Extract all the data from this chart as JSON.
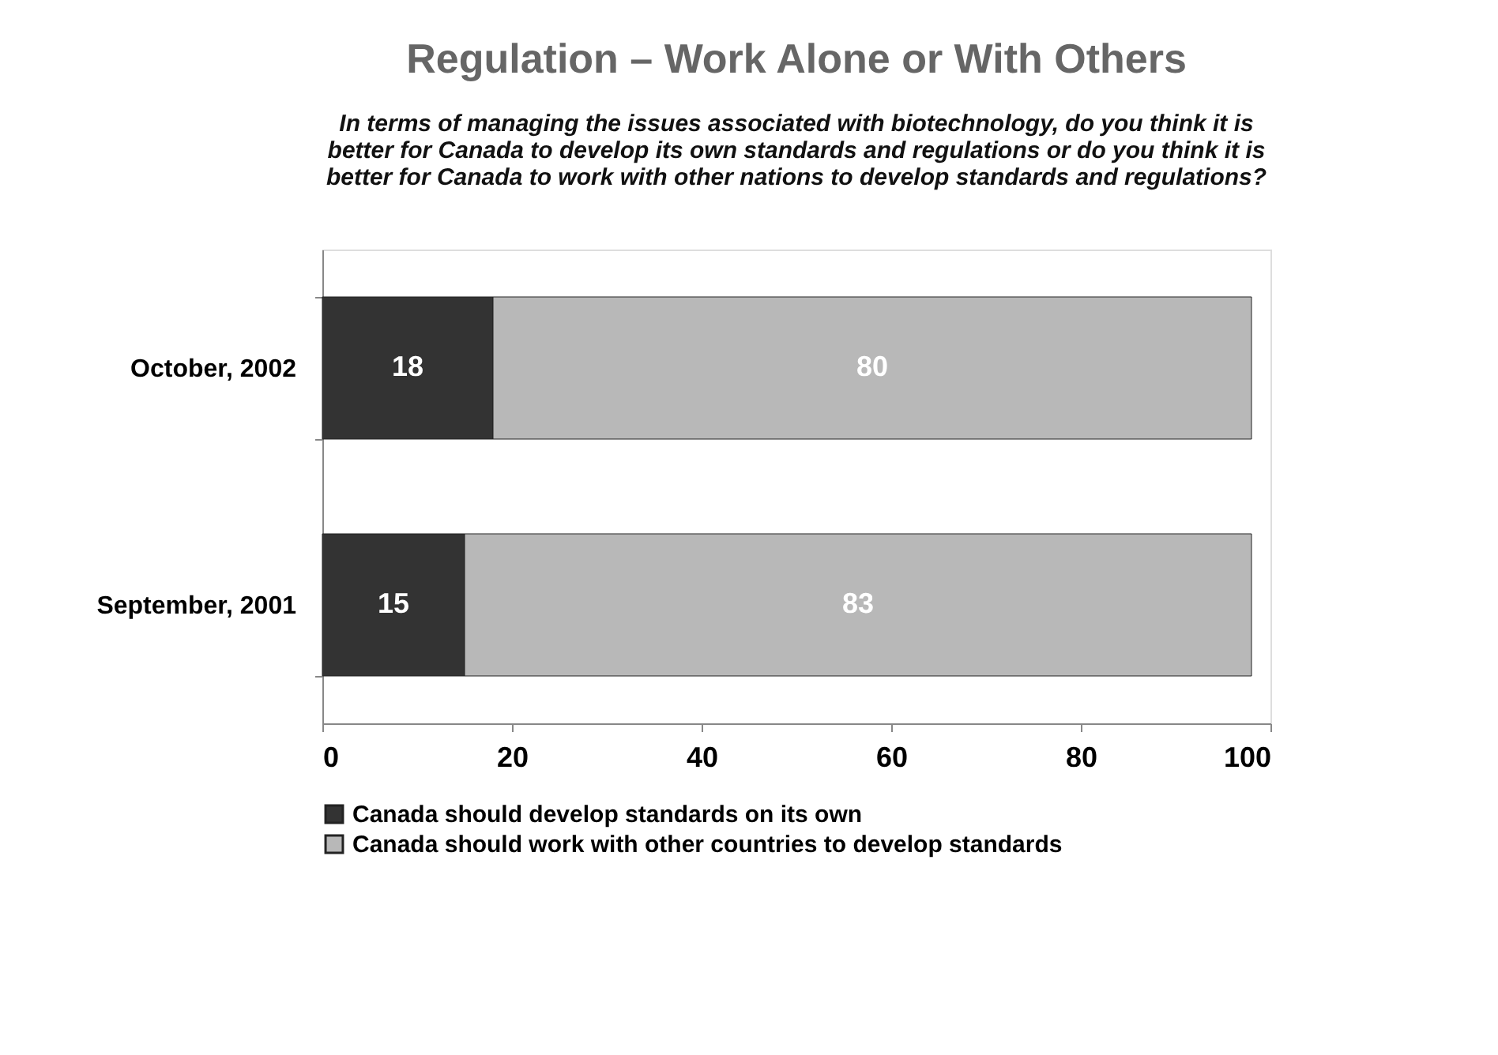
{
  "chart_data": {
    "type": "bar",
    "orientation": "horizontal",
    "stacked": true,
    "title": "Regulation – Work Alone or With Others",
    "subtitle": "In terms of managing the issues associated with biotechnology, do you think it is better for Canada to develop its own standards and regulations or do you think it is better for Canada to work with other nations to develop standards and regulations?",
    "categories": [
      "October, 2002",
      "September, 2001"
    ],
    "series": [
      {
        "name": "Canada should develop standards on its own",
        "color": "#333333",
        "values": [
          18,
          15
        ]
      },
      {
        "name": "Canada should work with other countries to develop standards",
        "color": "#b8b8b8",
        "values": [
          80,
          83
        ]
      }
    ],
    "xlim": [
      0,
      100
    ],
    "xticks": [
      0,
      20,
      40,
      60,
      80,
      100
    ],
    "grid": false,
    "legend": "bottom left",
    "data_labels": true
  }
}
